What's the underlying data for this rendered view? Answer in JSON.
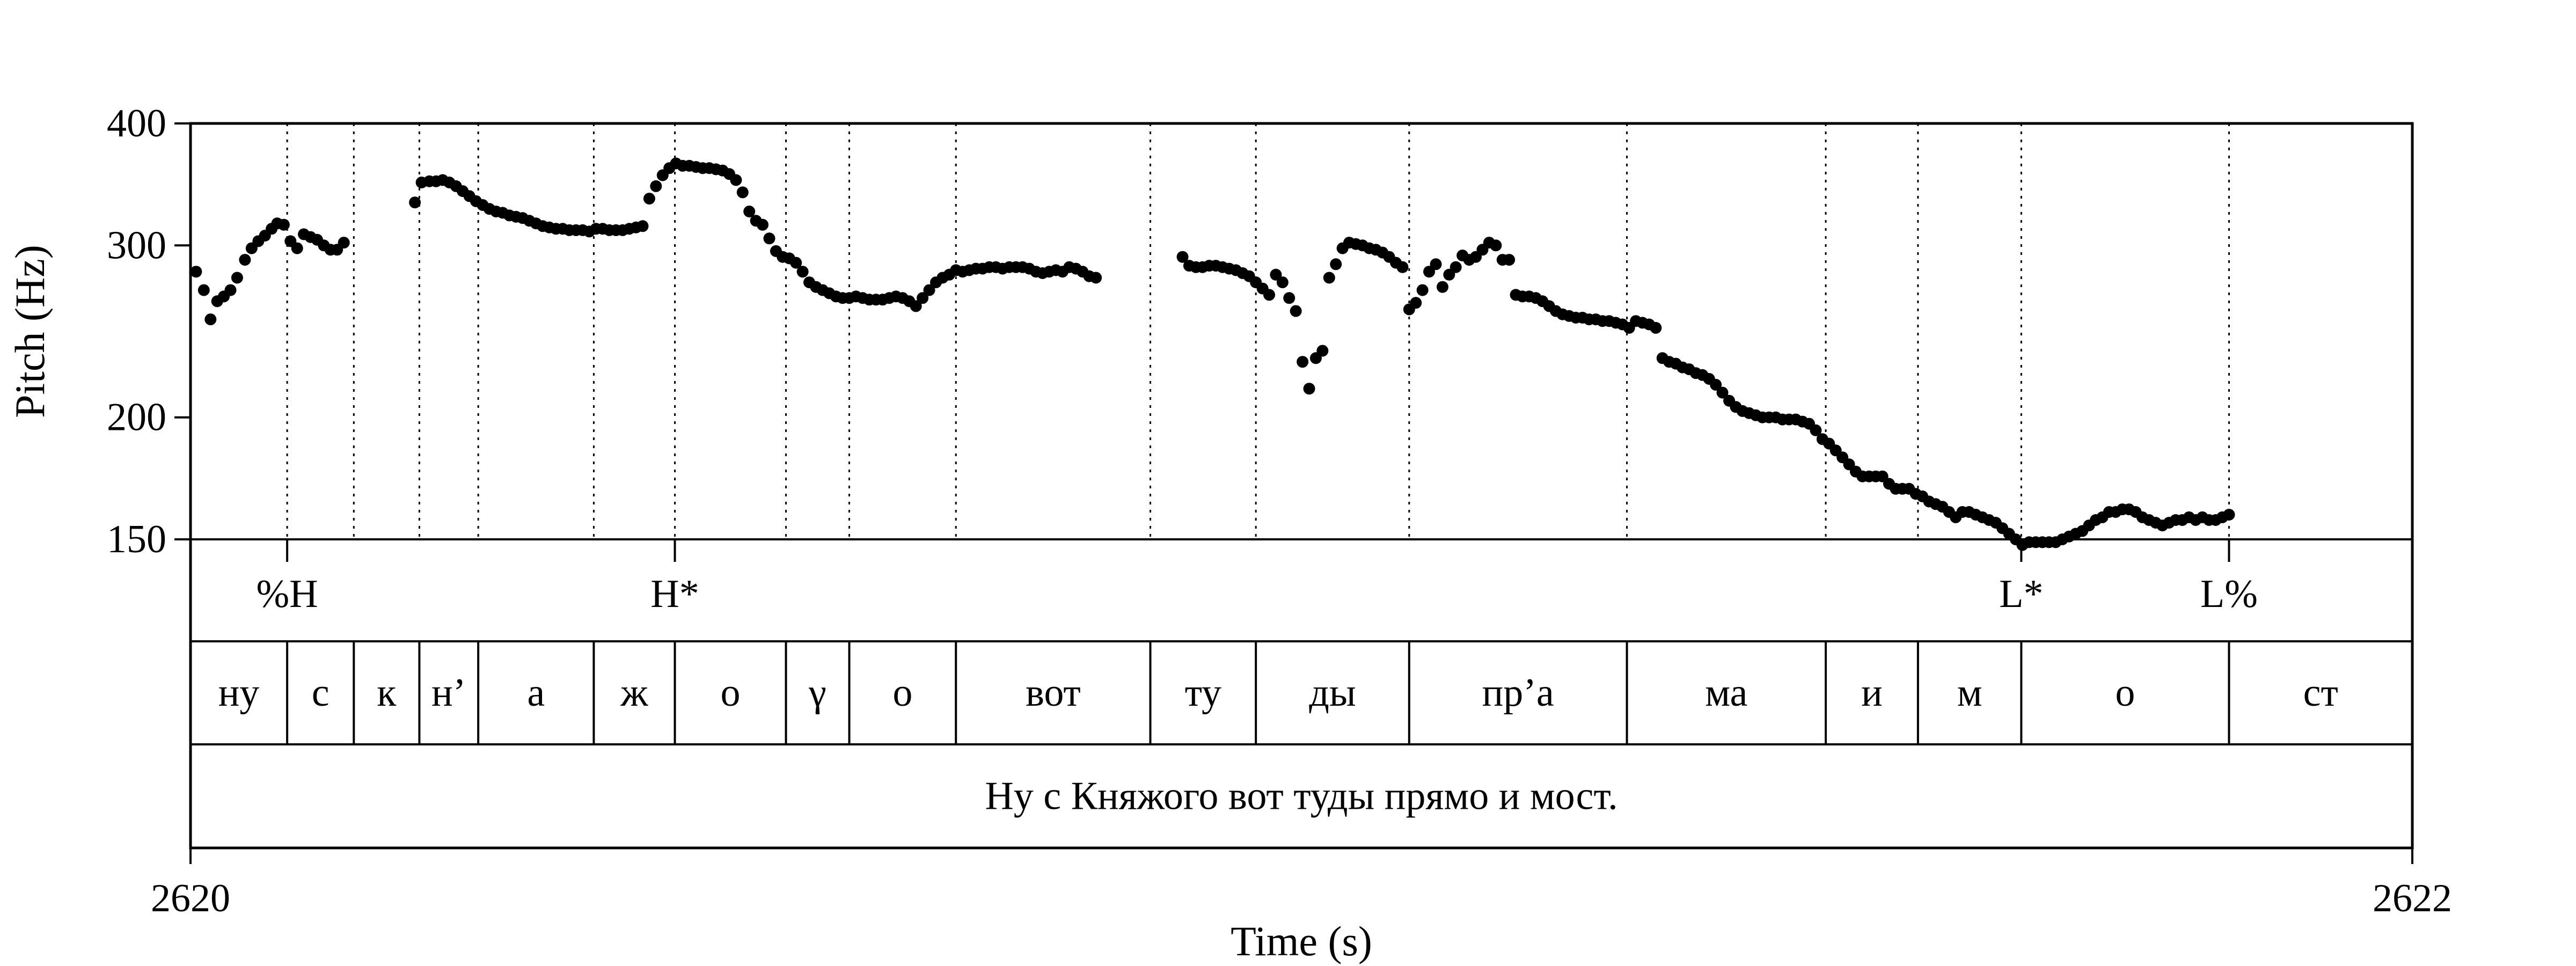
{
  "chart_data": {
    "type": "scatter",
    "ylabel": "Pitch (Hz)",
    "xlabel": "Time (s)",
    "xlim": [
      2620,
      2622
    ],
    "ylim": [
      150,
      400
    ],
    "yscale": "log",
    "yticks": [
      150,
      200,
      300,
      400
    ],
    "yticklabels": [
      "150",
      "200",
      "300",
      "400"
    ],
    "xticklabels": [
      "2620",
      "2622"
    ],
    "grid": false,
    "tones": [
      {
        "label": "%H",
        "t": 2620.087
      },
      {
        "label": "H*",
        "t": 2620.436
      },
      {
        "label": "L*",
        "t": 2621.648
      },
      {
        "label": "L%",
        "t": 2621.835
      }
    ],
    "segments": [
      {
        "label": "ну",
        "start": 2620.0,
        "end": 2620.087
      },
      {
        "label": "с",
        "start": 2620.087,
        "end": 2620.147
      },
      {
        "label": "к",
        "start": 2620.147,
        "end": 2620.206
      },
      {
        "label": "н’",
        "start": 2620.206,
        "end": 2620.259
      },
      {
        "label": "а",
        "start": 2620.259,
        "end": 2620.363
      },
      {
        "label": "ж",
        "start": 2620.363,
        "end": 2620.436
      },
      {
        "label": "о",
        "start": 2620.436,
        "end": 2620.536
      },
      {
        "label": "γ",
        "start": 2620.536,
        "end": 2620.593
      },
      {
        "label": "о",
        "start": 2620.593,
        "end": 2620.689
      },
      {
        "label": "вот",
        "start": 2620.689,
        "end": 2620.864
      },
      {
        "label": "ту",
        "start": 2620.864,
        "end": 2620.959
      },
      {
        "label": "ды",
        "start": 2620.959,
        "end": 2621.097
      },
      {
        "label": "пр’а",
        "start": 2621.097,
        "end": 2621.293
      },
      {
        "label": "ма",
        "start": 2621.293,
        "end": 2621.472
      },
      {
        "label": "и",
        "start": 2621.472,
        "end": 2621.555
      },
      {
        "label": "м",
        "start": 2621.555,
        "end": 2621.648
      },
      {
        "label": "о",
        "start": 2621.648,
        "end": 2621.835
      },
      {
        "label": "ст",
        "start": 2621.835,
        "end": 2622.0
      }
    ],
    "sentence": "Ну с Княжого вот туды прямо и мост.",
    "pitch_contours": [
      [
        [
          2620.005,
          282
        ],
        [
          2620.012,
          270
        ],
        [
          2620.018,
          252
        ],
        [
          2620.024,
          263
        ],
        [
          2620.03,
          266
        ],
        [
          2620.036,
          270
        ],
        [
          2620.042,
          278
        ],
        [
          2620.049,
          290
        ],
        [
          2620.055,
          298
        ],
        [
          2620.061,
          303
        ],
        [
          2620.067,
          307
        ],
        [
          2620.073,
          312
        ],
        [
          2620.078,
          316
        ],
        [
          2620.084,
          315
        ],
        [
          2620.09,
          303
        ],
        [
          2620.096,
          298
        ],
        [
          2620.102,
          308
        ],
        [
          2620.108,
          306
        ],
        [
          2620.114,
          304
        ],
        [
          2620.12,
          300
        ],
        [
          2620.126,
          297
        ],
        [
          2620.132,
          297
        ],
        [
          2620.138,
          302
        ]
      ],
      [
        [
          2620.202,
          332
        ],
        [
          2620.208,
          348
        ],
        [
          2620.215,
          349
        ],
        [
          2620.221,
          349
        ],
        [
          2620.227,
          350
        ],
        [
          2620.233,
          348
        ],
        [
          2620.239,
          345
        ],
        [
          2620.245,
          341
        ],
        [
          2620.251,
          337
        ],
        [
          2620.257,
          333
        ],
        [
          2620.263,
          330
        ],
        [
          2620.269,
          327
        ],
        [
          2620.275,
          325
        ],
        [
          2620.281,
          324
        ],
        [
          2620.287,
          322
        ],
        [
          2620.293,
          321
        ],
        [
          2620.299,
          320
        ],
        [
          2620.305,
          318
        ],
        [
          2620.311,
          316
        ],
        [
          2620.317,
          314
        ],
        [
          2620.323,
          313
        ],
        [
          2620.329,
          312
        ],
        [
          2620.335,
          312
        ],
        [
          2620.341,
          311
        ],
        [
          2620.347,
          311
        ],
        [
          2620.353,
          311
        ],
        [
          2620.359,
          310
        ],
        [
          2620.365,
          312
        ],
        [
          2620.371,
          312
        ],
        [
          2620.377,
          311
        ],
        [
          2620.383,
          311
        ],
        [
          2620.389,
          311
        ],
        [
          2620.395,
          312
        ],
        [
          2620.401,
          313
        ],
        [
          2620.407,
          314
        ],
        [
          2620.413,
          335
        ],
        [
          2620.419,
          345
        ],
        [
          2620.425,
          354
        ],
        [
          2620.431,
          360
        ],
        [
          2620.437,
          364
        ],
        [
          2620.443,
          362
        ],
        [
          2620.449,
          362
        ],
        [
          2620.455,
          361
        ],
        [
          2620.461,
          360
        ],
        [
          2620.467,
          360
        ],
        [
          2620.473,
          359
        ],
        [
          2620.479,
          358
        ],
        [
          2620.485,
          355
        ],
        [
          2620.491,
          350
        ],
        [
          2620.497,
          340
        ],
        [
          2620.503,
          325
        ],
        [
          2620.509,
          318
        ],
        [
          2620.515,
          315
        ],
        [
          2620.521,
          305
        ],
        [
          2620.527,
          296
        ],
        [
          2620.533,
          292
        ],
        [
          2620.539,
          291
        ],
        [
          2620.545,
          288
        ],
        [
          2620.551,
          282
        ],
        [
          2620.557,
          275
        ],
        [
          2620.563,
          272
        ],
        [
          2620.569,
          270
        ],
        [
          2620.575,
          268
        ],
        [
          2620.581,
          266
        ],
        [
          2620.587,
          265
        ],
        [
          2620.593,
          265
        ],
        [
          2620.599,
          266
        ],
        [
          2620.605,
          265
        ],
        [
          2620.611,
          264
        ],
        [
          2620.617,
          264
        ],
        [
          2620.623,
          264
        ],
        [
          2620.629,
          265
        ],
        [
          2620.635,
          266
        ],
        [
          2620.641,
          265
        ],
        [
          2620.647,
          263
        ],
        [
          2620.653,
          260
        ],
        [
          2620.659,
          265
        ],
        [
          2620.665,
          270
        ],
        [
          2620.671,
          275
        ],
        [
          2620.677,
          278
        ],
        [
          2620.683,
          280
        ],
        [
          2620.689,
          283
        ],
        [
          2620.695,
          282
        ],
        [
          2620.701,
          283
        ],
        [
          2620.707,
          284
        ],
        [
          2620.713,
          284
        ],
        [
          2620.719,
          285
        ],
        [
          2620.725,
          285
        ],
        [
          2620.731,
          284
        ],
        [
          2620.737,
          285
        ],
        [
          2620.743,
          285
        ],
        [
          2620.749,
          285
        ],
        [
          2620.755,
          284
        ],
        [
          2620.761,
          282
        ],
        [
          2620.767,
          281
        ],
        [
          2620.773,
          282
        ],
        [
          2620.779,
          283
        ],
        [
          2620.785,
          282
        ],
        [
          2620.791,
          285
        ],
        [
          2620.797,
          284
        ],
        [
          2620.803,
          282
        ],
        [
          2620.809,
          279
        ],
        [
          2620.815,
          278
        ]
      ],
      [
        [
          2620.893,
          292
        ],
        [
          2620.899,
          286
        ],
        [
          2620.905,
          285
        ],
        [
          2620.911,
          285
        ],
        [
          2620.917,
          286
        ],
        [
          2620.923,
          286
        ],
        [
          2620.929,
          285
        ],
        [
          2620.935,
          284
        ],
        [
          2620.941,
          283
        ],
        [
          2620.947,
          281
        ],
        [
          2620.953,
          279
        ],
        [
          2620.959,
          275
        ],
        [
          2620.965,
          271
        ],
        [
          2620.971,
          267
        ],
        [
          2620.977,
          280
        ],
        [
          2620.983,
          275
        ],
        [
          2620.989,
          265
        ],
        [
          2620.995,
          257
        ],
        [
          2621.001,
          228
        ],
        [
          2621.007,
          214
        ],
        [
          2621.013,
          230
        ],
        [
          2621.019,
          234
        ]
      ],
      [
        [
          2621.025,
          278
        ],
        [
          2621.031,
          287
        ],
        [
          2621.037,
          298
        ],
        [
          2621.043,
          302
        ],
        [
          2621.049,
          301
        ],
        [
          2621.055,
          300
        ],
        [
          2621.061,
          298
        ],
        [
          2621.067,
          297
        ],
        [
          2621.073,
          295
        ],
        [
          2621.079,
          292
        ],
        [
          2621.085,
          288
        ],
        [
          2621.091,
          285
        ],
        [
          2621.097,
          258
        ],
        [
          2621.103,
          262
        ],
        [
          2621.109,
          270
        ],
        [
          2621.115,
          282
        ],
        [
          2621.121,
          287
        ],
        [
          2621.127,
          272
        ],
        [
          2621.133,
          280
        ],
        [
          2621.139,
          285
        ],
        [
          2621.145,
          293
        ],
        [
          2621.151,
          290
        ],
        [
          2621.157,
          292
        ],
        [
          2621.163,
          297
        ],
        [
          2621.169,
          302
        ],
        [
          2621.175,
          300
        ],
        [
          2621.181,
          290
        ],
        [
          2621.187,
          290
        ],
        [
          2621.193,
          267
        ],
        [
          2621.199,
          266
        ],
        [
          2621.205,
          266
        ],
        [
          2621.211,
          265
        ],
        [
          2621.217,
          263
        ],
        [
          2621.223,
          260
        ],
        [
          2621.229,
          257
        ],
        [
          2621.235,
          255
        ],
        [
          2621.241,
          254
        ],
        [
          2621.247,
          253
        ],
        [
          2621.253,
          253
        ],
        [
          2621.259,
          252
        ],
        [
          2621.265,
          252
        ],
        [
          2621.271,
          251
        ],
        [
          2621.277,
          251
        ],
        [
          2621.283,
          250
        ],
        [
          2621.289,
          249
        ],
        [
          2621.295,
          247
        ],
        [
          2621.301,
          251
        ],
        [
          2621.307,
          250
        ],
        [
          2621.313,
          249
        ],
        [
          2621.319,
          247
        ],
        [
          2621.325,
          230
        ],
        [
          2621.331,
          228
        ],
        [
          2621.337,
          227
        ],
        [
          2621.343,
          225
        ],
        [
          2621.349,
          224
        ],
        [
          2621.355,
          222
        ],
        [
          2621.361,
          221
        ],
        [
          2621.367,
          219
        ],
        [
          2621.373,
          216
        ],
        [
          2621.379,
          212
        ],
        [
          2621.385,
          208
        ],
        [
          2621.391,
          205
        ],
        [
          2621.397,
          203
        ],
        [
          2621.403,
          202
        ],
        [
          2621.409,
          201
        ],
        [
          2621.415,
          200
        ],
        [
          2621.421,
          200
        ],
        [
          2621.427,
          200
        ],
        [
          2621.433,
          199
        ],
        [
          2621.439,
          199
        ],
        [
          2621.445,
          199
        ],
        [
          2621.451,
          198
        ],
        [
          2621.457,
          197
        ],
        [
          2621.463,
          194
        ],
        [
          2621.469,
          190
        ],
        [
          2621.475,
          188
        ],
        [
          2621.481,
          185
        ],
        [
          2621.487,
          182
        ],
        [
          2621.493,
          179
        ],
        [
          2621.499,
          176
        ],
        [
          2621.505,
          174
        ],
        [
          2621.511,
          174
        ],
        [
          2621.517,
          174
        ],
        [
          2621.523,
          174
        ],
        [
          2621.529,
          171
        ],
        [
          2621.535,
          169
        ],
        [
          2621.541,
          169
        ],
        [
          2621.547,
          169
        ],
        [
          2621.553,
          167
        ],
        [
          2621.559,
          166
        ],
        [
          2621.565,
          164
        ],
        [
          2621.571,
          163
        ],
        [
          2621.577,
          162
        ],
        [
          2621.583,
          160
        ],
        [
          2621.589,
          158
        ],
        [
          2621.595,
          160
        ],
        [
          2621.601,
          160
        ],
        [
          2621.607,
          159
        ],
        [
          2621.613,
          158
        ],
        [
          2621.619,
          157
        ],
        [
          2621.625,
          156
        ],
        [
          2621.631,
          154
        ],
        [
          2621.637,
          152
        ],
        [
          2621.643,
          150
        ],
        [
          2621.649,
          148
        ],
        [
          2621.655,
          149
        ],
        [
          2621.661,
          149
        ],
        [
          2621.667,
          149
        ],
        [
          2621.673,
          149
        ],
        [
          2621.679,
          149
        ],
        [
          2621.685,
          150
        ],
        [
          2621.691,
          151
        ],
        [
          2621.697,
          152
        ],
        [
          2621.703,
          153
        ],
        [
          2621.709,
          155
        ],
        [
          2621.715,
          157
        ],
        [
          2621.721,
          158
        ],
        [
          2621.727,
          160
        ],
        [
          2621.733,
          160
        ],
        [
          2621.739,
          161
        ],
        [
          2621.745,
          161
        ],
        [
          2621.751,
          160
        ],
        [
          2621.757,
          158
        ],
        [
          2621.763,
          157
        ],
        [
          2621.769,
          156
        ],
        [
          2621.775,
          155
        ],
        [
          2621.781,
          156
        ],
        [
          2621.787,
          157
        ],
        [
          2621.793,
          157
        ],
        [
          2621.799,
          158
        ],
        [
          2621.805,
          157
        ],
        [
          2621.811,
          158
        ],
        [
          2621.817,
          157
        ],
        [
          2621.823,
          157
        ],
        [
          2621.829,
          158
        ],
        [
          2621.835,
          159
        ]
      ]
    ]
  }
}
